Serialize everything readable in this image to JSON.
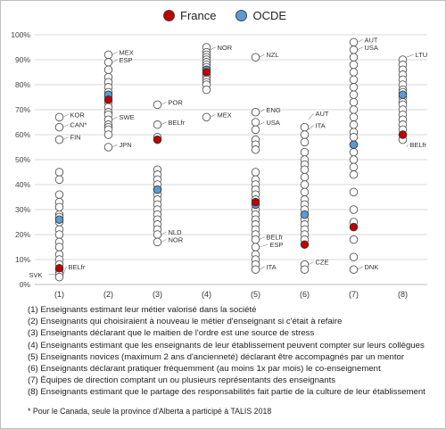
{
  "legend": [
    {
      "name": "France",
      "color": "#c00000"
    },
    {
      "name": "OCDE",
      "color": "#5b9bd5"
    }
  ],
  "chart_data": {
    "type": "scatter",
    "ylim": [
      0,
      100
    ],
    "yticks": [
      "0%",
      "10%",
      "20%",
      "30%",
      "40%",
      "50%",
      "60%",
      "70%",
      "80%",
      "90%",
      "100%"
    ],
    "categories": [
      "(1)",
      "(2)",
      "(3)",
      "(4)",
      "(5)",
      "(6)",
      "(7)",
      "(8)"
    ],
    "grid": true,
    "legend_position": "top",
    "colors": {
      "country_fill": "#ffffff",
      "country_stroke": "#555555",
      "france": "#c00000",
      "ocde": "#5b9bd5"
    },
    "countries": [
      [
        67,
        63,
        58,
        45,
        42,
        36,
        33,
        31,
        28,
        27,
        25,
        22,
        20,
        17,
        15,
        12,
        10,
        8,
        6,
        5,
        4,
        3
      ],
      [
        92,
        89,
        86,
        83,
        81,
        79,
        77,
        75,
        73,
        71,
        69,
        68,
        66,
        64,
        63,
        62,
        60,
        55
      ],
      [
        72,
        64,
        59,
        46,
        44,
        42,
        40,
        38,
        36,
        34,
        32,
        30,
        28,
        26,
        24,
        22,
        20,
        17
      ],
      [
        95,
        93,
        92,
        91,
        90,
        89,
        88,
        87,
        86,
        85,
        84,
        83,
        82,
        81,
        80,
        78,
        67
      ],
      [
        91,
        69,
        65,
        62,
        58,
        56,
        54,
        45,
        42,
        40,
        38,
        36,
        34,
        32,
        30,
        28,
        26,
        24,
        22,
        20,
        18,
        15,
        12,
        10,
        8,
        6
      ],
      [
        63,
        60,
        57,
        53,
        50,
        48,
        46,
        43,
        40,
        37,
        34,
        32,
        30,
        26,
        24,
        22,
        20,
        18,
        8,
        6
      ],
      [
        97,
        94,
        91,
        88,
        85,
        82,
        79,
        76,
        73,
        70,
        67,
        64,
        61,
        59,
        56,
        53,
        50,
        47,
        44,
        37,
        30,
        25,
        18,
        11,
        6
      ],
      [
        90,
        88,
        86,
        84,
        82,
        80,
        78,
        77,
        75,
        73,
        72,
        70,
        68,
        66,
        64,
        62,
        60,
        58
      ]
    ],
    "france": [
      6.5,
      74,
      58,
      85,
      33,
      16,
      23,
      60
    ],
    "ocde": [
      26,
      76,
      38,
      86,
      32,
      28,
      56,
      76
    ],
    "labels": [
      {
        "cat": 0,
        "y": 67,
        "text": "KOR",
        "dx": 12,
        "dy": 0
      },
      {
        "cat": 0,
        "y": 63,
        "text": "CAN*",
        "dx": 12,
        "dy": 0
      },
      {
        "cat": 0,
        "y": 58,
        "text": "FIN",
        "dx": 12,
        "dy": 0
      },
      {
        "cat": 0,
        "y": 4,
        "text": "SVK",
        "dx": -34,
        "dy": 3
      },
      {
        "cat": 0,
        "y": 4,
        "text": "BELfr",
        "dx": 10,
        "dy": -6
      },
      {
        "cat": 1,
        "y": 92,
        "text": "MEX",
        "dx": 12,
        "dy": 0
      },
      {
        "cat": 1,
        "y": 89,
        "text": "ESP",
        "dx": 12,
        "dy": 0
      },
      {
        "cat": 1,
        "y": 66,
        "text": "SWE",
        "dx": 12,
        "dy": 0
      },
      {
        "cat": 1,
        "y": 55,
        "text": "JPN",
        "dx": 12,
        "dy": 0
      },
      {
        "cat": 2,
        "y": 72,
        "text": "POR",
        "dx": 12,
        "dy": 0
      },
      {
        "cat": 2,
        "y": 64,
        "text": "BELfr",
        "dx": 12,
        "dy": 0
      },
      {
        "cat": 2,
        "y": 20,
        "text": "NLD",
        "dx": 12,
        "dy": 0
      },
      {
        "cat": 2,
        "y": 17,
        "text": "NOR",
        "dx": 12,
        "dy": 0
      },
      {
        "cat": 3,
        "y": 94,
        "text": "NOR",
        "dx": 12,
        "dy": 0
      },
      {
        "cat": 3,
        "y": 67,
        "text": "MEX",
        "dx": 12,
        "dy": 0
      },
      {
        "cat": 4,
        "y": 91,
        "text": "NZL",
        "dx": 12,
        "dy": 0
      },
      {
        "cat": 4,
        "y": 69,
        "text": "ENG",
        "dx": 12,
        "dy": 0
      },
      {
        "cat": 4,
        "y": 64,
        "text": "USA",
        "dx": 12,
        "dy": 0
      },
      {
        "cat": 4,
        "y": 18,
        "text": "BELfr",
        "dx": 12,
        "dy": 0
      },
      {
        "cat": 4,
        "y": 15,
        "text": "ESP",
        "dx": 16,
        "dy": 0
      },
      {
        "cat": 4,
        "y": 6,
        "text": "ITA",
        "dx": 12,
        "dy": 0
      },
      {
        "cat": 5,
        "y": 66,
        "text": "AUT",
        "dx": 12,
        "dy": -4
      },
      {
        "cat": 5,
        "y": 62,
        "text": "ITA",
        "dx": 12,
        "dy": -2
      },
      {
        "cat": 5,
        "y": 8,
        "text": "CZE",
        "dx": 12,
        "dy": 0
      },
      {
        "cat": 6,
        "y": 97,
        "text": "AUT",
        "dx": 12,
        "dy": 0
      },
      {
        "cat": 6,
        "y": 94,
        "text": "USA",
        "dx": 12,
        "dy": 0
      },
      {
        "cat": 6,
        "y": 6,
        "text": "DNK",
        "dx": 12,
        "dy": 0
      },
      {
        "cat": 7,
        "y": 91,
        "text": "LTU",
        "dx": 14,
        "dy": 0
      },
      {
        "cat": 7,
        "y": 55,
        "text": "BELfr",
        "dx": 8,
        "dy": 0
      }
    ]
  },
  "notes": [
    "(1) Enseignants estimant leur métier valorisé dans la société",
    "(2) Enseignants qui choisiraient à nouveau le métier d'enseignant si c'était à refaire",
    "(3) Enseignants déclarant que le maitien de l'ordre est une source de stress",
    "(4) Enseignants estimant que les enseignants de leur établissement peuvent compter sur leurs collègues",
    "(5) Enseignants novices (maximum 2 ans d'ancienneté) déclarant être accompagnés par un mentor",
    "(6) Enseignants déclarant pratiquer fréquemment (au moins 1x par mois) le co-enseignement",
    "(7) Équipes de direction comptant un ou plusieurs représentants des enseignants",
    "(8) Enseignants estimant que le partage des responsabilités fait partie de la culture de leur établissement"
  ],
  "footnote": "* Pour le Canada, seule la province d'Alberta a participé à TALIS 2018"
}
